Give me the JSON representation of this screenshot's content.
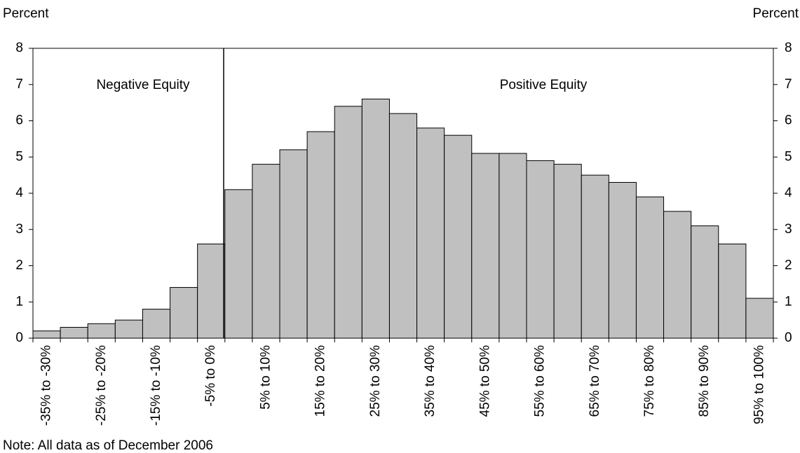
{
  "chart_data": {
    "type": "bar",
    "y_label_left": "Percent",
    "y_label_right": "Percent",
    "annotations": [
      "Negative Equity",
      "Positive Equity"
    ],
    "note": "Note: All data as of December 2006",
    "categories": [
      "-35% to -30%",
      null,
      "-25% to -20%",
      null,
      "-15% to -10%",
      null,
      "-5% to 0%",
      null,
      "5% to 10%",
      null,
      "15% to 20%",
      null,
      "25% to 30%",
      null,
      "35% to 40%",
      null,
      "45% to 50%",
      null,
      "55% to 60%",
      null,
      "65% to 70%",
      null,
      "75% to 80%",
      null,
      "85% to 90%",
      null,
      "95% to 100%"
    ],
    "values": [
      0.2,
      0.3,
      0.4,
      0.5,
      0.8,
      1.4,
      2.6,
      4.1,
      4.8,
      5.2,
      5.7,
      6.4,
      6.6,
      6.2,
      5.8,
      5.6,
      5.1,
      5.1,
      4.9,
      4.8,
      4.5,
      4.3,
      3.9,
      3.5,
      3.1,
      2.6,
      1.1
    ],
    "color": "#c0c0c0",
    "ylim": [
      0,
      8
    ],
    "yticks": [
      0,
      1,
      2,
      3,
      4,
      5,
      6,
      7,
      8
    ],
    "y2lim": [
      0,
      8
    ],
    "y2ticks": [
      0,
      1,
      2,
      3,
      4,
      5,
      6,
      7,
      8
    ]
  }
}
